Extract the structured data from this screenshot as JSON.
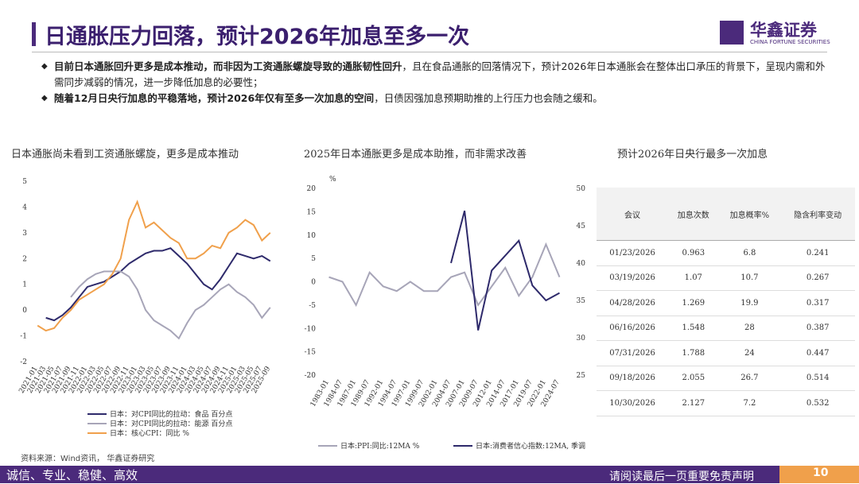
{
  "header": {
    "title": "日通胀压力回落，预计2026年加息至多一次",
    "logo": "华鑫证券",
    "logo_en": "CHINA FORTUNE SECURITIES"
  },
  "bullets": [
    {
      "bold": "目前日本通胀回升更多是成本推动，而非因为工资通胀螺旋导致的通胀韧性回升",
      "text": "，且在食品通胀的回落情况下，预计2026年日本通胀会在整体出口承压的背景下，呈现内需和外需同步减弱的情况，进一步降低加息的必要性；"
    },
    {
      "bold": "随着12月日央行加息的平稳落地，预计2026年仅有至多一次加息的空间",
      "text": "，日债因强加息预期助推的上行压力也会随之缓和。"
    }
  ],
  "chart_data": [
    {
      "type": "line",
      "title": "日本通胀尚未看到工资通胀螺旋，更多是成本推动",
      "categories": [
        "2021-01",
        "2021-03",
        "2021-05",
        "2021-07",
        "2021-09",
        "2021-11",
        "2022-01",
        "2022-03",
        "2022-05",
        "2022-07",
        "2022-09",
        "2022-11",
        "2023-01",
        "2023-03",
        "2023-05",
        "2023-07",
        "2023-09",
        "2023-11",
        "2024-01",
        "2024-03",
        "2024-05",
        "2024-07",
        "2024-09",
        "2024-11",
        "2025-01",
        "2025-03",
        "2025-05",
        "2025-07",
        "2025-09"
      ],
      "ylim": [
        -2,
        5
      ],
      "yticks": [
        -2,
        -1,
        0,
        1,
        2,
        3,
        4,
        5
      ],
      "series": [
        {
          "name": "日本：对CPI同比的拉动：食品  百分点",
          "color": "#2e2a6b",
          "values": [
            null,
            -0.3,
            -0.4,
            -0.2,
            0.1,
            0.5,
            0.9,
            1.0,
            1.1,
            1.3,
            1.5,
            1.8,
            2.0,
            2.2,
            2.3,
            2.3,
            2.4,
            2.1,
            1.8,
            1.4,
            1.0,
            0.8,
            1.2,
            1.7,
            2.2,
            2.1,
            2.0,
            2.1,
            1.9
          ]
        },
        {
          "name": "日本：对CPI同比的拉动：能源  百分点",
          "color": "#a7a5b8",
          "values": [
            null,
            null,
            null,
            null,
            0.5,
            0.9,
            1.2,
            1.4,
            1.5,
            1.5,
            1.5,
            1.3,
            0.8,
            0.0,
            -0.4,
            -0.6,
            -0.8,
            -1.1,
            -0.5,
            0.0,
            0.2,
            0.5,
            0.8,
            1.0,
            0.7,
            0.5,
            0.2,
            -0.3,
            0.1
          ]
        },
        {
          "name": "日本：核心CPI：同比  %",
          "color": "#f0a04b",
          "values": [
            -0.6,
            -0.8,
            -0.7,
            -0.3,
            0.0,
            0.4,
            0.6,
            0.8,
            1.0,
            1.4,
            2.0,
            3.5,
            4.2,
            3.2,
            3.4,
            3.1,
            2.8,
            2.6,
            2.0,
            2.0,
            2.2,
            2.5,
            2.4,
            3.0,
            3.2,
            3.5,
            3.3,
            2.7,
            3.0
          ]
        }
      ]
    },
    {
      "type": "line",
      "title": "2025年日本通胀更多是成本助推，而非需求改善",
      "unit": "%",
      "categories": [
        "1983-01",
        "1984-07",
        "1987-01",
        "1989-07",
        "1992-01",
        "1994-07",
        "1997-01",
        "1999-07",
        "2002-01",
        "2004-07",
        "2007-01",
        "2009-07",
        "2012-01",
        "2014-07",
        "2017-01",
        "2019-07",
        "2022-01",
        "2024-07"
      ],
      "ylim": [
        -20,
        20
      ],
      "yticks": [
        -20,
        -15,
        -10,
        -5,
        0,
        5,
        10,
        15,
        20
      ],
      "y2lim": [
        25,
        50
      ],
      "y2ticks": [
        25,
        30,
        35,
        40,
        45,
        50
      ],
      "series": [
        {
          "name": "日本:PPI:同比:12MA  %",
          "color": "#a7a5b8",
          "values": [
            1,
            0,
            -5,
            2,
            -1,
            -2,
            0,
            -2,
            -2,
            1,
            2,
            -5,
            -1,
            3,
            -3,
            1,
            8,
            1
          ]
        },
        {
          "name": "日本:消费者信心指数:12MA,  季调",
          "color": "#2e2a6b",
          "axis": "y2",
          "values": [
            null,
            null,
            null,
            null,
            null,
            null,
            null,
            null,
            null,
            40,
            47,
            31,
            39,
            41,
            43,
            37,
            35,
            36
          ]
        }
      ]
    }
  ],
  "table": {
    "title": "预计2026年日央行最多一次加息",
    "columns": [
      "会议",
      "加息次数",
      "加息概率%",
      "隐含利率变动"
    ],
    "rows": [
      [
        "01/23/2026",
        "0.963",
        "6.8",
        "0.241"
      ],
      [
        "03/19/2026",
        "1.07",
        "10.7",
        "0.267"
      ],
      [
        "04/28/2026",
        "1.269",
        "19.9",
        "0.317"
      ],
      [
        "06/16/2026",
        "1.548",
        "28",
        "0.387"
      ],
      [
        "07/31/2026",
        "1.788",
        "24",
        "0.447"
      ],
      [
        "09/18/2026",
        "2.055",
        "26.7",
        "0.514"
      ],
      [
        "10/30/2026",
        "2.127",
        "7.2",
        "0.532"
      ]
    ]
  },
  "footer": {
    "source": "资料来源：Wind资讯， 华鑫证券研究",
    "slogan": "诚信、专业、稳健、高效",
    "disclaimer": "请阅读最后一页重要免责声明",
    "page": "10"
  }
}
